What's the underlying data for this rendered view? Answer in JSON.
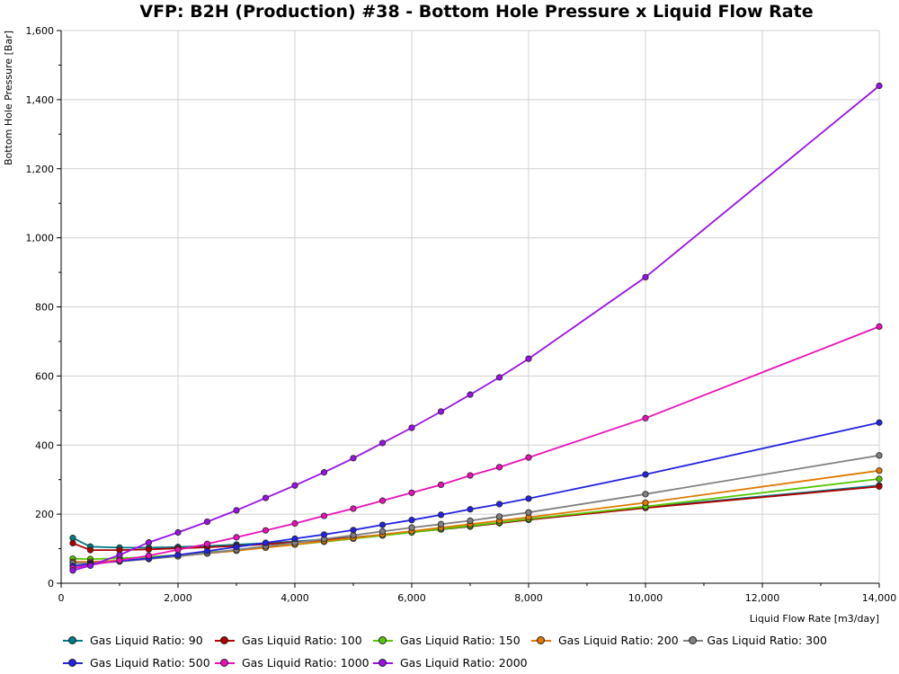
{
  "chart_data": {
    "type": "line",
    "title": "VFP: B2H (Production) #38 - Bottom Hole Pressure x Liquid Flow Rate",
    "xlabel": "Liquid Flow Rate [m3/day]",
    "ylabel": "Bottom Hole Pressure [Bar]",
    "xlim": [
      0,
      14000
    ],
    "ylim": [
      0,
      1600
    ],
    "xticks": [
      "0",
      "2,000",
      "4,000",
      "6,000",
      "8,000",
      "10,000",
      "12,000",
      "14,000"
    ],
    "yticks": [
      "0",
      "200",
      "400",
      "600",
      "800",
      "1,000",
      "1,200",
      "1,400",
      "1,600"
    ],
    "grid": true,
    "legend_position": "bottom",
    "x": [
      200,
      500,
      1000,
      1500,
      2000,
      2500,
      3000,
      3500,
      4000,
      4500,
      5000,
      5500,
      6000,
      6500,
      7000,
      7500,
      8000,
      10000,
      14000
    ],
    "series": [
      {
        "name": "Gas Liquid Ratio: 90",
        "color": "#007a87",
        "values": [
          131,
          106,
          103,
          103,
          105,
          108,
          112,
          116,
          121,
          127,
          133,
          140,
          148,
          156,
          164,
          174,
          184,
          220,
          283
        ]
      },
      {
        "name": "Gas Liquid Ratio: 100",
        "color": "#b00000",
        "values": [
          116,
          96,
          96,
          98,
          101,
          104,
          108,
          113,
          119,
          125,
          132,
          140,
          148,
          156,
          165,
          174,
          184,
          218,
          280
        ]
      },
      {
        "name": "Gas Liquid Ratio: 150",
        "color": "#55c800",
        "values": [
          71,
          70,
          72,
          76,
          82,
          89,
          96,
          104,
          112,
          120,
          129,
          138,
          147,
          157,
          166,
          176,
          186,
          222,
          302
        ]
      },
      {
        "name": "Gas Liquid Ratio: 200",
        "color": "#e07800",
        "values": [
          62,
          62,
          66,
          71,
          78,
          86,
          94,
          103,
          112,
          122,
          131,
          141,
          151,
          161,
          171,
          181,
          191,
          233,
          326
        ]
      },
      {
        "name": "Gas Liquid Ratio: 300",
        "color": "#808080",
        "values": [
          58,
          58,
          63,
          70,
          78,
          87,
          97,
          107,
          117,
          128,
          139,
          150,
          161,
          171,
          181,
          193,
          205,
          258,
          370
        ]
      },
      {
        "name": "Gas Liquid Ratio: 500",
        "color": "#2222e0",
        "values": [
          50,
          56,
          64,
          72,
          82,
          93,
          105,
          117,
          129,
          141,
          154,
          169,
          183,
          198,
          214,
          229,
          245,
          315,
          465
        ]
      },
      {
        "name": "Gas Liquid Ratio: 1000",
        "color": "#ea10b8",
        "values": [
          44,
          53,
          66,
          80,
          97,
          114,
          133,
          153,
          173,
          195,
          216,
          239,
          262,
          285,
          312,
          336,
          364,
          478,
          743
        ]
      },
      {
        "name": "Gas Liquid Ratio: 2000",
        "color": "#9a10e8",
        "values": [
          37,
          51,
          82,
          118,
          147,
          178,
          211,
          247,
          283,
          321,
          362,
          406,
          450,
          497,
          546,
          596,
          650,
          886,
          1440
        ]
      }
    ]
  }
}
